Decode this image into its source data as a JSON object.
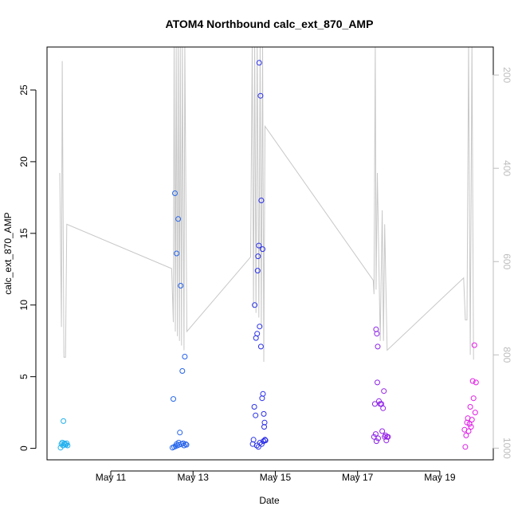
{
  "chart_data": {
    "type": "scatter",
    "title": "ATOM4 Northbound calc_ext_870_AMP",
    "xlabel": "Date",
    "ylabel": "calc_ext_870_AMP",
    "x_ticks": [
      {
        "day": 11,
        "label": "May 11"
      },
      {
        "day": 13,
        "label": "May 13"
      },
      {
        "day": 15,
        "label": "May 15"
      },
      {
        "day": 17,
        "label": "May 17"
      },
      {
        "day": 19,
        "label": "May 19"
      }
    ],
    "xlim": [
      9.45,
      20.3
    ],
    "ylim": [
      -0.8,
      28
    ],
    "y_ticks": [
      0,
      5,
      10,
      15,
      20,
      25
    ],
    "y2_ticks": [
      200,
      400,
      600,
      800,
      1000
    ],
    "y2lim": [
      1025,
      140
    ],
    "grid": false,
    "colors": {
      "axis": "#000000",
      "right_axis": "#bdbdbd",
      "secondary_line": "#c8c8c8",
      "point_start": "#1eb4ee",
      "point_mid": "#2a2ae8",
      "point_end": "#e61ee6"
    },
    "series": [
      {
        "points": [
          [
            9.78,
            0.05
          ],
          [
            9.8,
            0.3
          ],
          [
            9.82,
            0.4
          ],
          [
            9.84,
            0.2
          ],
          [
            9.85,
            1.9
          ],
          [
            9.87,
            0.35
          ],
          [
            9.89,
            0.3
          ],
          [
            9.91,
            0.25
          ],
          [
            9.93,
            0.35
          ],
          [
            9.95,
            0.2
          ],
          [
            12.5,
            0.05
          ],
          [
            12.52,
            3.45
          ],
          [
            12.54,
            0.1
          ],
          [
            12.56,
            17.8
          ],
          [
            12.58,
            0.15
          ],
          [
            12.6,
            13.6
          ],
          [
            12.62,
            0.2
          ],
          [
            12.64,
            16.0
          ],
          [
            12.66,
            0.25
          ],
          [
            12.68,
            1.1
          ],
          [
            12.7,
            11.35
          ],
          [
            12.72,
            0.3
          ],
          [
            12.74,
            5.4
          ],
          [
            12.76,
            0.35
          ],
          [
            12.78,
            0.2
          ],
          [
            12.8,
            6.4
          ],
          [
            12.82,
            0.3
          ],
          [
            12.84,
            0.25
          ],
          [
            12.6,
            0.3
          ],
          [
            12.65,
            0.4
          ],
          [
            14.45,
            0.3
          ],
          [
            14.47,
            0.6
          ],
          [
            14.49,
            2.9
          ],
          [
            14.5,
            10.0
          ],
          [
            14.52,
            2.3
          ],
          [
            14.53,
            7.7
          ],
          [
            14.55,
            0.2
          ],
          [
            14.56,
            8.0
          ],
          [
            14.57,
            12.4
          ],
          [
            14.58,
            13.4
          ],
          [
            14.59,
            0.1
          ],
          [
            14.6,
            14.15
          ],
          [
            14.61,
            26.9
          ],
          [
            14.62,
            8.5
          ],
          [
            14.63,
            0.4
          ],
          [
            14.64,
            24.6
          ],
          [
            14.65,
            7.1
          ],
          [
            14.66,
            17.3
          ],
          [
            14.67,
            0.3
          ],
          [
            14.68,
            3.5
          ],
          [
            14.69,
            13.9
          ],
          [
            14.7,
            3.8
          ],
          [
            14.71,
            0.5
          ],
          [
            14.72,
            2.4
          ],
          [
            14.73,
            1.5
          ],
          [
            14.74,
            1.8
          ],
          [
            14.75,
            0.6
          ],
          [
            14.76,
            0.55
          ],
          [
            17.4,
            0.8
          ],
          [
            17.42,
            3.1
          ],
          [
            17.44,
            1.0
          ],
          [
            17.45,
            8.3
          ],
          [
            17.46,
            0.5
          ],
          [
            17.47,
            8.0
          ],
          [
            17.48,
            4.6
          ],
          [
            17.49,
            7.1
          ],
          [
            17.5,
            0.7
          ],
          [
            17.52,
            3.3
          ],
          [
            17.55,
            3.1
          ],
          [
            17.58,
            3.1
          ],
          [
            17.6,
            1.2
          ],
          [
            17.62,
            2.8
          ],
          [
            17.64,
            4.0
          ],
          [
            17.66,
            0.8
          ],
          [
            17.68,
            0.9
          ],
          [
            17.7,
            0.55
          ],
          [
            17.72,
            0.8
          ],
          [
            17.74,
            0.8
          ],
          [
            19.6,
            1.3
          ],
          [
            19.62,
            0.1
          ],
          [
            19.64,
            0.9
          ],
          [
            19.66,
            1.8
          ],
          [
            19.68,
            2.1
          ],
          [
            19.7,
            1.2
          ],
          [
            19.72,
            1.7
          ],
          [
            19.74,
            2.9
          ],
          [
            19.76,
            1.5
          ],
          [
            19.78,
            2.0
          ],
          [
            19.8,
            4.7
          ],
          [
            19.82,
            3.5
          ],
          [
            19.84,
            7.2
          ],
          [
            19.86,
            2.5
          ],
          [
            19.88,
            4.6
          ]
        ]
      },
      {
        "axis": "right",
        "values": [
          [
            9.76,
            410
          ],
          [
            9.8,
            740
          ],
          [
            9.82,
            170
          ],
          [
            9.86,
            805
          ],
          [
            9.9,
            805
          ],
          [
            9.93,
            520
          ],
          [
            12.48,
            615
          ],
          [
            12.52,
            730
          ],
          [
            12.54,
            130
          ],
          [
            12.57,
            750
          ],
          [
            12.59,
            130
          ],
          [
            12.62,
            760
          ],
          [
            12.64,
            130
          ],
          [
            12.67,
            770
          ],
          [
            12.69,
            130
          ],
          [
            12.72,
            780
          ],
          [
            12.74,
            130
          ],
          [
            12.78,
            790
          ],
          [
            12.8,
            130
          ],
          [
            12.85,
            750
          ],
          [
            14.4,
            590
          ],
          [
            14.44,
            130
          ],
          [
            14.47,
            700
          ],
          [
            14.5,
            130
          ],
          [
            14.53,
            710
          ],
          [
            14.56,
            130
          ],
          [
            14.6,
            720
          ],
          [
            14.63,
            130
          ],
          [
            14.66,
            740
          ],
          [
            14.69,
            130
          ],
          [
            14.72,
            815
          ],
          [
            14.75,
            310
          ],
          [
            17.38,
            640
          ],
          [
            17.4,
            670
          ],
          [
            17.43,
            130
          ],
          [
            17.45,
            660
          ],
          [
            17.48,
            410
          ],
          [
            17.5,
            510
          ],
          [
            17.55,
            770
          ],
          [
            17.6,
            490
          ],
          [
            17.63,
            770
          ],
          [
            17.66,
            520
          ],
          [
            17.72,
            790
          ],
          [
            19.58,
            635
          ],
          [
            19.62,
            725
          ],
          [
            19.66,
            725
          ],
          [
            19.7,
            130
          ],
          [
            19.74,
            800
          ],
          [
            19.78,
            130
          ],
          [
            19.82,
            810
          ]
        ]
      }
    ]
  }
}
